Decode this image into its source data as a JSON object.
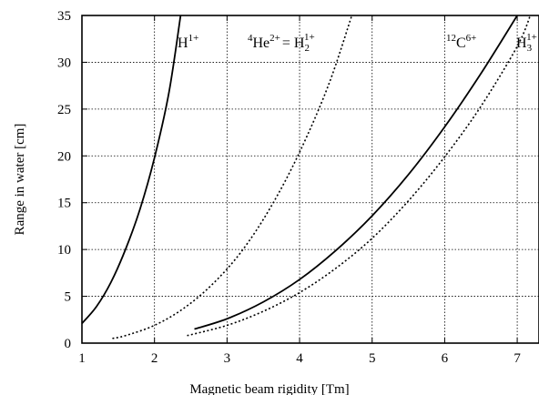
{
  "chart_data": {
    "type": "line",
    "xlabel": "Magnetic beam rigidity [Tm]",
    "ylabel": "Range in water [cm]",
    "xlim": [
      1,
      7.3
    ],
    "ylim": [
      0,
      35
    ],
    "xticks": [
      1,
      2,
      3,
      4,
      5,
      6,
      7
    ],
    "yticks": [
      0,
      5,
      10,
      15,
      20,
      25,
      30,
      35
    ],
    "grid": true,
    "series": [
      {
        "label_parts": {
          "base": "H",
          "sup": "1+",
          "sub": "",
          "pre": "",
          "extra": ""
        },
        "style": "solid",
        "x": [
          1.0,
          1.2,
          1.4,
          1.6,
          1.8,
          2.0,
          2.2,
          2.36
        ],
        "y": [
          2.1,
          3.9,
          6.5,
          10.0,
          14.3,
          19.8,
          26.8,
          35.0
        ]
      },
      {
        "label_parts": {
          "base": "He",
          "sup": "2+",
          "pre": "4",
          "extra": " = H",
          "sub": "2",
          "extra_sup": "1+"
        },
        "style": "dotted",
        "x": [
          1.42,
          1.6,
          2.0,
          2.4,
          2.8,
          3.2,
          3.6,
          4.0,
          4.4,
          4.72
        ],
        "y": [
          0.5,
          0.8,
          1.9,
          3.7,
          6.3,
          9.8,
          14.5,
          20.4,
          27.6,
          35.0
        ]
      },
      {
        "label_parts": {
          "base": "C",
          "sup": "6+",
          "pre": "12",
          "extra": "",
          "sub": ""
        },
        "style": "solid",
        "x": [
          2.55,
          3.0,
          3.5,
          4.0,
          4.5,
          5.0,
          5.5,
          6.0,
          6.5,
          7.0
        ],
        "y": [
          1.5,
          2.6,
          4.4,
          6.8,
          9.9,
          13.6,
          18.0,
          23.1,
          28.8,
          35.0
        ]
      },
      {
        "label_parts": {
          "base": "H",
          "sup": "1+",
          "sub": "3",
          "pre": "",
          "extra": ""
        },
        "style": "dotted",
        "x": [
          2.45,
          3.0,
          3.5,
          4.0,
          4.5,
          5.0,
          5.5,
          6.0,
          6.5,
          7.0,
          7.18
        ],
        "y": [
          0.8,
          1.9,
          3.4,
          5.4,
          8.0,
          11.2,
          15.2,
          19.9,
          25.3,
          31.7,
          35.0
        ]
      }
    ],
    "labels": {
      "h1": {
        "base": "H",
        "sup": "1+"
      },
      "he": {
        "pre": "4",
        "base": "He",
        "sup": "2+",
        "eq": "= H",
        "sub": "2",
        "sup2": "1+"
      },
      "c": {
        "pre": "12",
        "base": "C",
        "sup": "6+"
      },
      "h3": {
        "base": "H",
        "sub": "3",
        "sup": "1+"
      }
    }
  }
}
